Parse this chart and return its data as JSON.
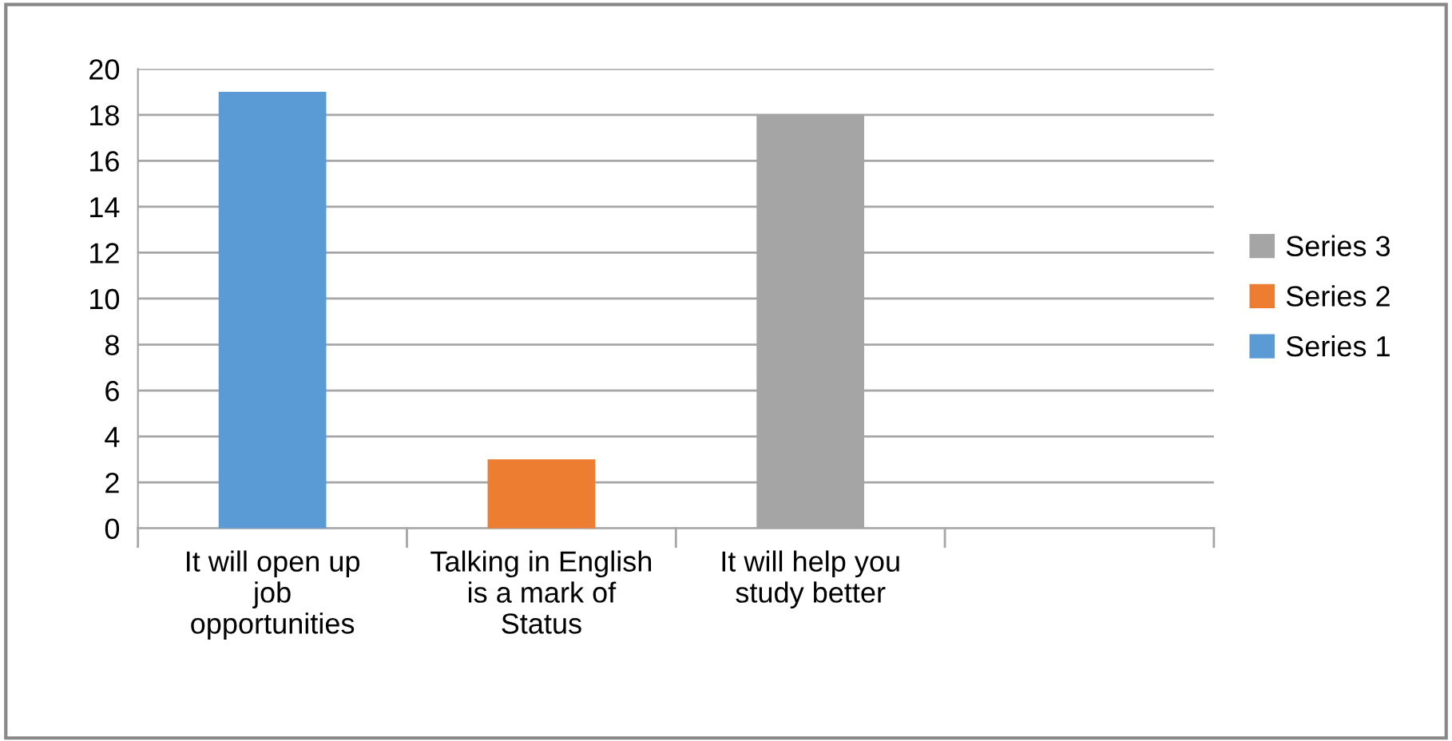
{
  "chart_data": {
    "type": "bar",
    "stacked": true,
    "categories": [
      "It will open up\njob\nopportunities",
      "Talking in English\nis a mark of\nStatus",
      "It will help you\nstudy better",
      null
    ],
    "series": [
      {
        "name": "Series 1",
        "color": "#5b9bd5",
        "values": [
          19,
          null,
          null,
          null
        ]
      },
      {
        "name": "Series 2",
        "color": "#ed7d31",
        "values": [
          null,
          3,
          null,
          null
        ]
      },
      {
        "name": "Series 3",
        "color": "#a5a5a5",
        "values": [
          null,
          null,
          18,
          null
        ]
      }
    ],
    "ylim": [
      0,
      20
    ],
    "yticks": [
      0,
      2,
      4,
      6,
      8,
      10,
      12,
      14,
      16,
      18,
      20
    ],
    "grid": "y",
    "legend": "right"
  }
}
